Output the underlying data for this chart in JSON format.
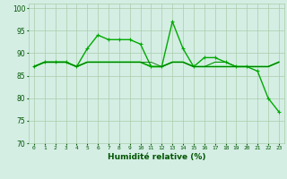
{
  "series": [
    {
      "values": [
        87,
        88,
        88,
        88,
        87,
        91,
        94,
        93,
        93,
        93,
        92,
        87,
        87,
        97,
        91,
        87,
        89,
        89,
        88,
        87,
        87,
        86,
        80,
        77
      ],
      "color": "#00aa00",
      "linewidth": 1.0,
      "marker": "+",
      "markersize": 3.5
    },
    {
      "values": [
        87,
        88,
        88,
        88,
        87,
        88,
        88,
        88,
        88,
        88,
        88,
        87,
        87,
        88,
        88,
        87,
        87,
        87,
        87,
        87,
        87,
        87,
        87,
        88
      ],
      "color": "#00cc00",
      "linewidth": 1.2,
      "marker": null,
      "markersize": 0
    },
    {
      "values": [
        87,
        88,
        88,
        88,
        87,
        88,
        88,
        88,
        88,
        88,
        88,
        87,
        87,
        88,
        88,
        87,
        87,
        88,
        88,
        87,
        87,
        87,
        87,
        88
      ],
      "color": "#009900",
      "linewidth": 0.8,
      "marker": null,
      "markersize": 0
    },
    {
      "values": [
        87,
        88,
        88,
        88,
        87,
        88,
        88,
        88,
        88,
        88,
        88,
        88,
        87,
        88,
        88,
        87,
        87,
        87,
        87,
        87,
        87,
        87,
        87,
        88
      ],
      "color": "#007700",
      "linewidth": 0.6,
      "marker": null,
      "markersize": 0
    }
  ],
  "xlabel": "Humidité relative (%)",
  "xlim": [
    -0.5,
    23.5
  ],
  "ylim": [
    70,
    101
  ],
  "yticks": [
    70,
    75,
    80,
    85,
    90,
    95,
    100
  ],
  "xtick_labels": [
    "0",
    "1",
    "2",
    "3",
    "4",
    "5",
    "6",
    "7",
    "8",
    "9",
    "10",
    "11",
    "12",
    "13",
    "14",
    "15",
    "16",
    "17",
    "18",
    "19",
    "20",
    "21",
    "22",
    "23"
  ],
  "bg_color": "#d4eee4",
  "grid_color": "#aaccaa",
  "xlabel_color": "#005500",
  "tick_color": "#005500"
}
